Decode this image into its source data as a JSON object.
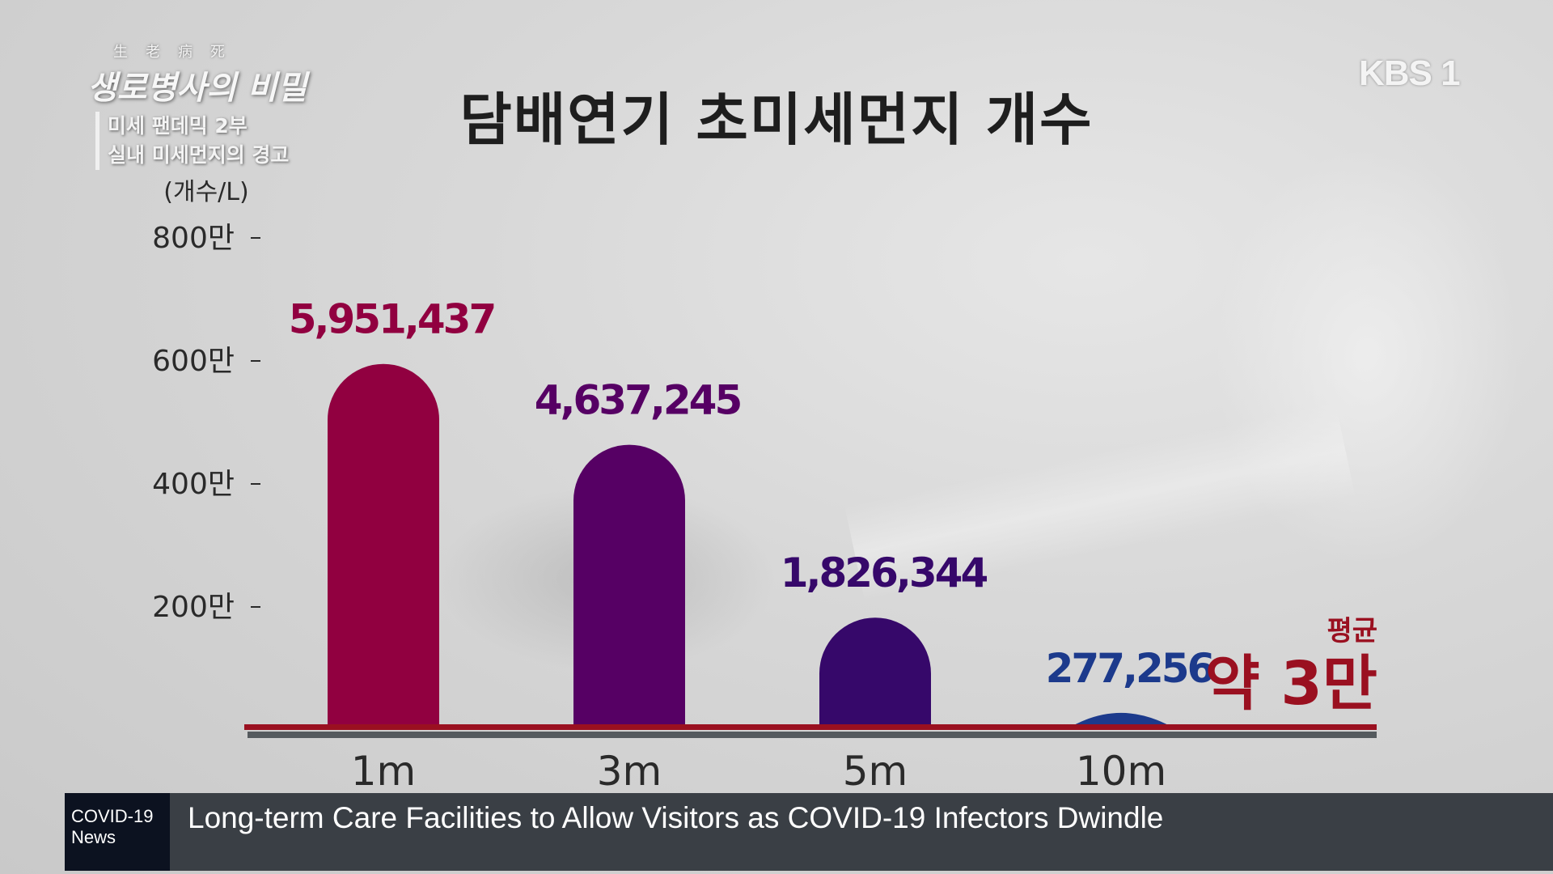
{
  "show": {
    "hanja": "生老病死",
    "name": "생로병사의 비밀",
    "episode_line1": "미세 팬데믹 2부",
    "episode_line2": "실내 미세먼지의 경고"
  },
  "channel_logo": "KBS 1",
  "ticker": {
    "tag": "COVID-19 News",
    "headline": "Long-term Care Facilities to Allow Visitors as COVID-19 Infectors Dwindle"
  },
  "chart_data": {
    "type": "bar",
    "title": "담배연기 초미세먼지 개수",
    "ylabel": "(개수/L)",
    "ylim": [
      0,
      8000000
    ],
    "yticks": [
      {
        "value": 2000000,
        "label": "200만"
      },
      {
        "value": 4000000,
        "label": "400만"
      },
      {
        "value": 6000000,
        "label": "600만"
      },
      {
        "value": 8000000,
        "label": "800만"
      }
    ],
    "categories": [
      "1m",
      "3m",
      "5m",
      "10m"
    ],
    "values": [
      5951437,
      4637245,
      1826344,
      277256
    ],
    "value_labels": [
      "5,951,437",
      "4,637,245",
      "1,826,344",
      "277,256"
    ],
    "colors": [
      "#910040",
      "#560064",
      "#36086a",
      "#1c3a8c"
    ],
    "reference": {
      "label_top": "평균",
      "label_main": "약 3만",
      "color": "#9a1020"
    },
    "grid": false
  }
}
